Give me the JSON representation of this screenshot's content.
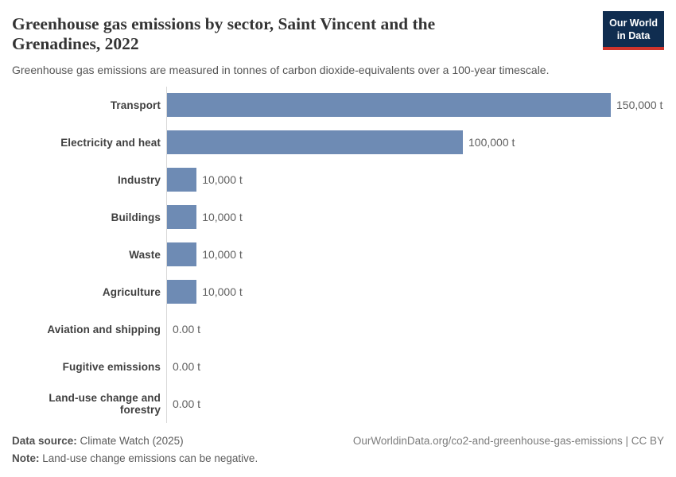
{
  "header": {
    "title": "Greenhouse gas emissions by sector, Saint Vincent and the Grenadines, 2022",
    "subtitle": "Greenhouse gas emissions are measured in tonnes of carbon dioxide-equivalents over a 100-year timescale.",
    "logo": {
      "line1": "Our World",
      "line2": "in Data",
      "bg_color": "#102d50",
      "accent_color": "#d0342c"
    }
  },
  "chart_data": {
    "type": "bar",
    "orientation": "horizontal",
    "title": "Greenhouse gas emissions by sector, Saint Vincent and the Grenadines, 2022",
    "xlabel": "",
    "ylabel": "",
    "unit": "t",
    "xlim": [
      0,
      150000
    ],
    "grid": false,
    "legend": "none",
    "bar_color": "#6e8bb4",
    "categories": [
      "Transport",
      "Electricity and heat",
      "Industry",
      "Buildings",
      "Waste",
      "Agriculture",
      "Aviation and shipping",
      "Fugitive emissions",
      "Land-use change and forestry"
    ],
    "values": [
      150000,
      100000,
      10000,
      10000,
      10000,
      10000,
      0,
      0,
      0
    ],
    "value_labels": [
      "150,000 t",
      "100,000 t",
      "10,000 t",
      "10,000 t",
      "10,000 t",
      "10,000 t",
      "0.00 t",
      "0.00 t",
      "0.00 t"
    ]
  },
  "footer": {
    "datasource_label": "Data source:",
    "datasource_value": "Climate Watch (2025)",
    "note_label": "Note:",
    "note_value": "Land-use change emissions can be negative.",
    "rights": "OurWorldinData.org/co2-and-greenhouse-gas-emissions | CC BY"
  }
}
